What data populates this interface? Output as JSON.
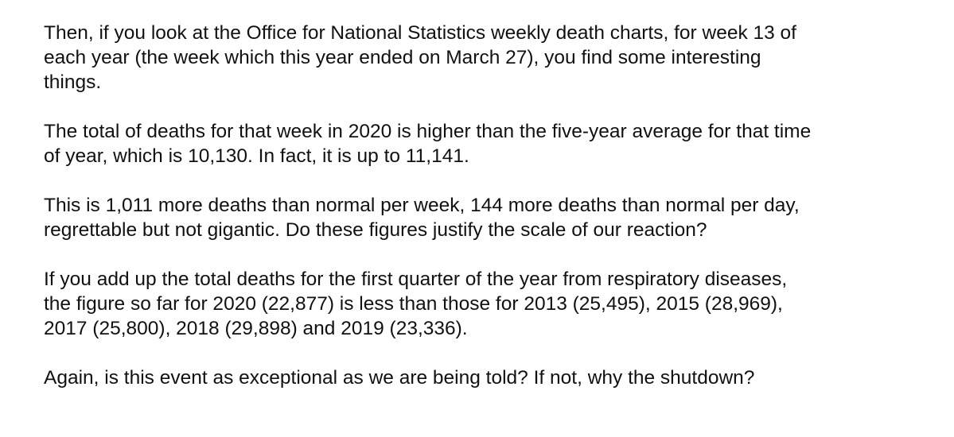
{
  "document": {
    "paragraphs": [
      {
        "lines": [
          "Then, if you look at the Office for National Statistics weekly death charts, for week 13 of",
          "each year (the week which this year ended on March 27), you find some interesting",
          "things."
        ]
      },
      {
        "lines": [
          "The total of deaths for that week in 2020 is higher than the five-year average for that time",
          "of year, which is 10,130. In fact, it is up to 11,141."
        ]
      },
      {
        "lines": [
          "This is 1,011 more deaths than normal per week, 144 more deaths than normal per day,",
          "regrettable but not gigantic. Do these figures justify the scale of our reaction?"
        ]
      },
      {
        "lines": [
          "If you add up the total deaths for the first quarter of the year from respiratory diseases,",
          "the figure so far for 2020 (22,877) is less than those for 2013 (25,495), 2015 (28,969),",
          "2017 (25,800), 2018 (29,898) and 2019 (23,336)."
        ]
      },
      {
        "lines": [
          "Again, is this event as exceptional as we are being told? If not, why the shutdown?"
        ]
      }
    ]
  }
}
